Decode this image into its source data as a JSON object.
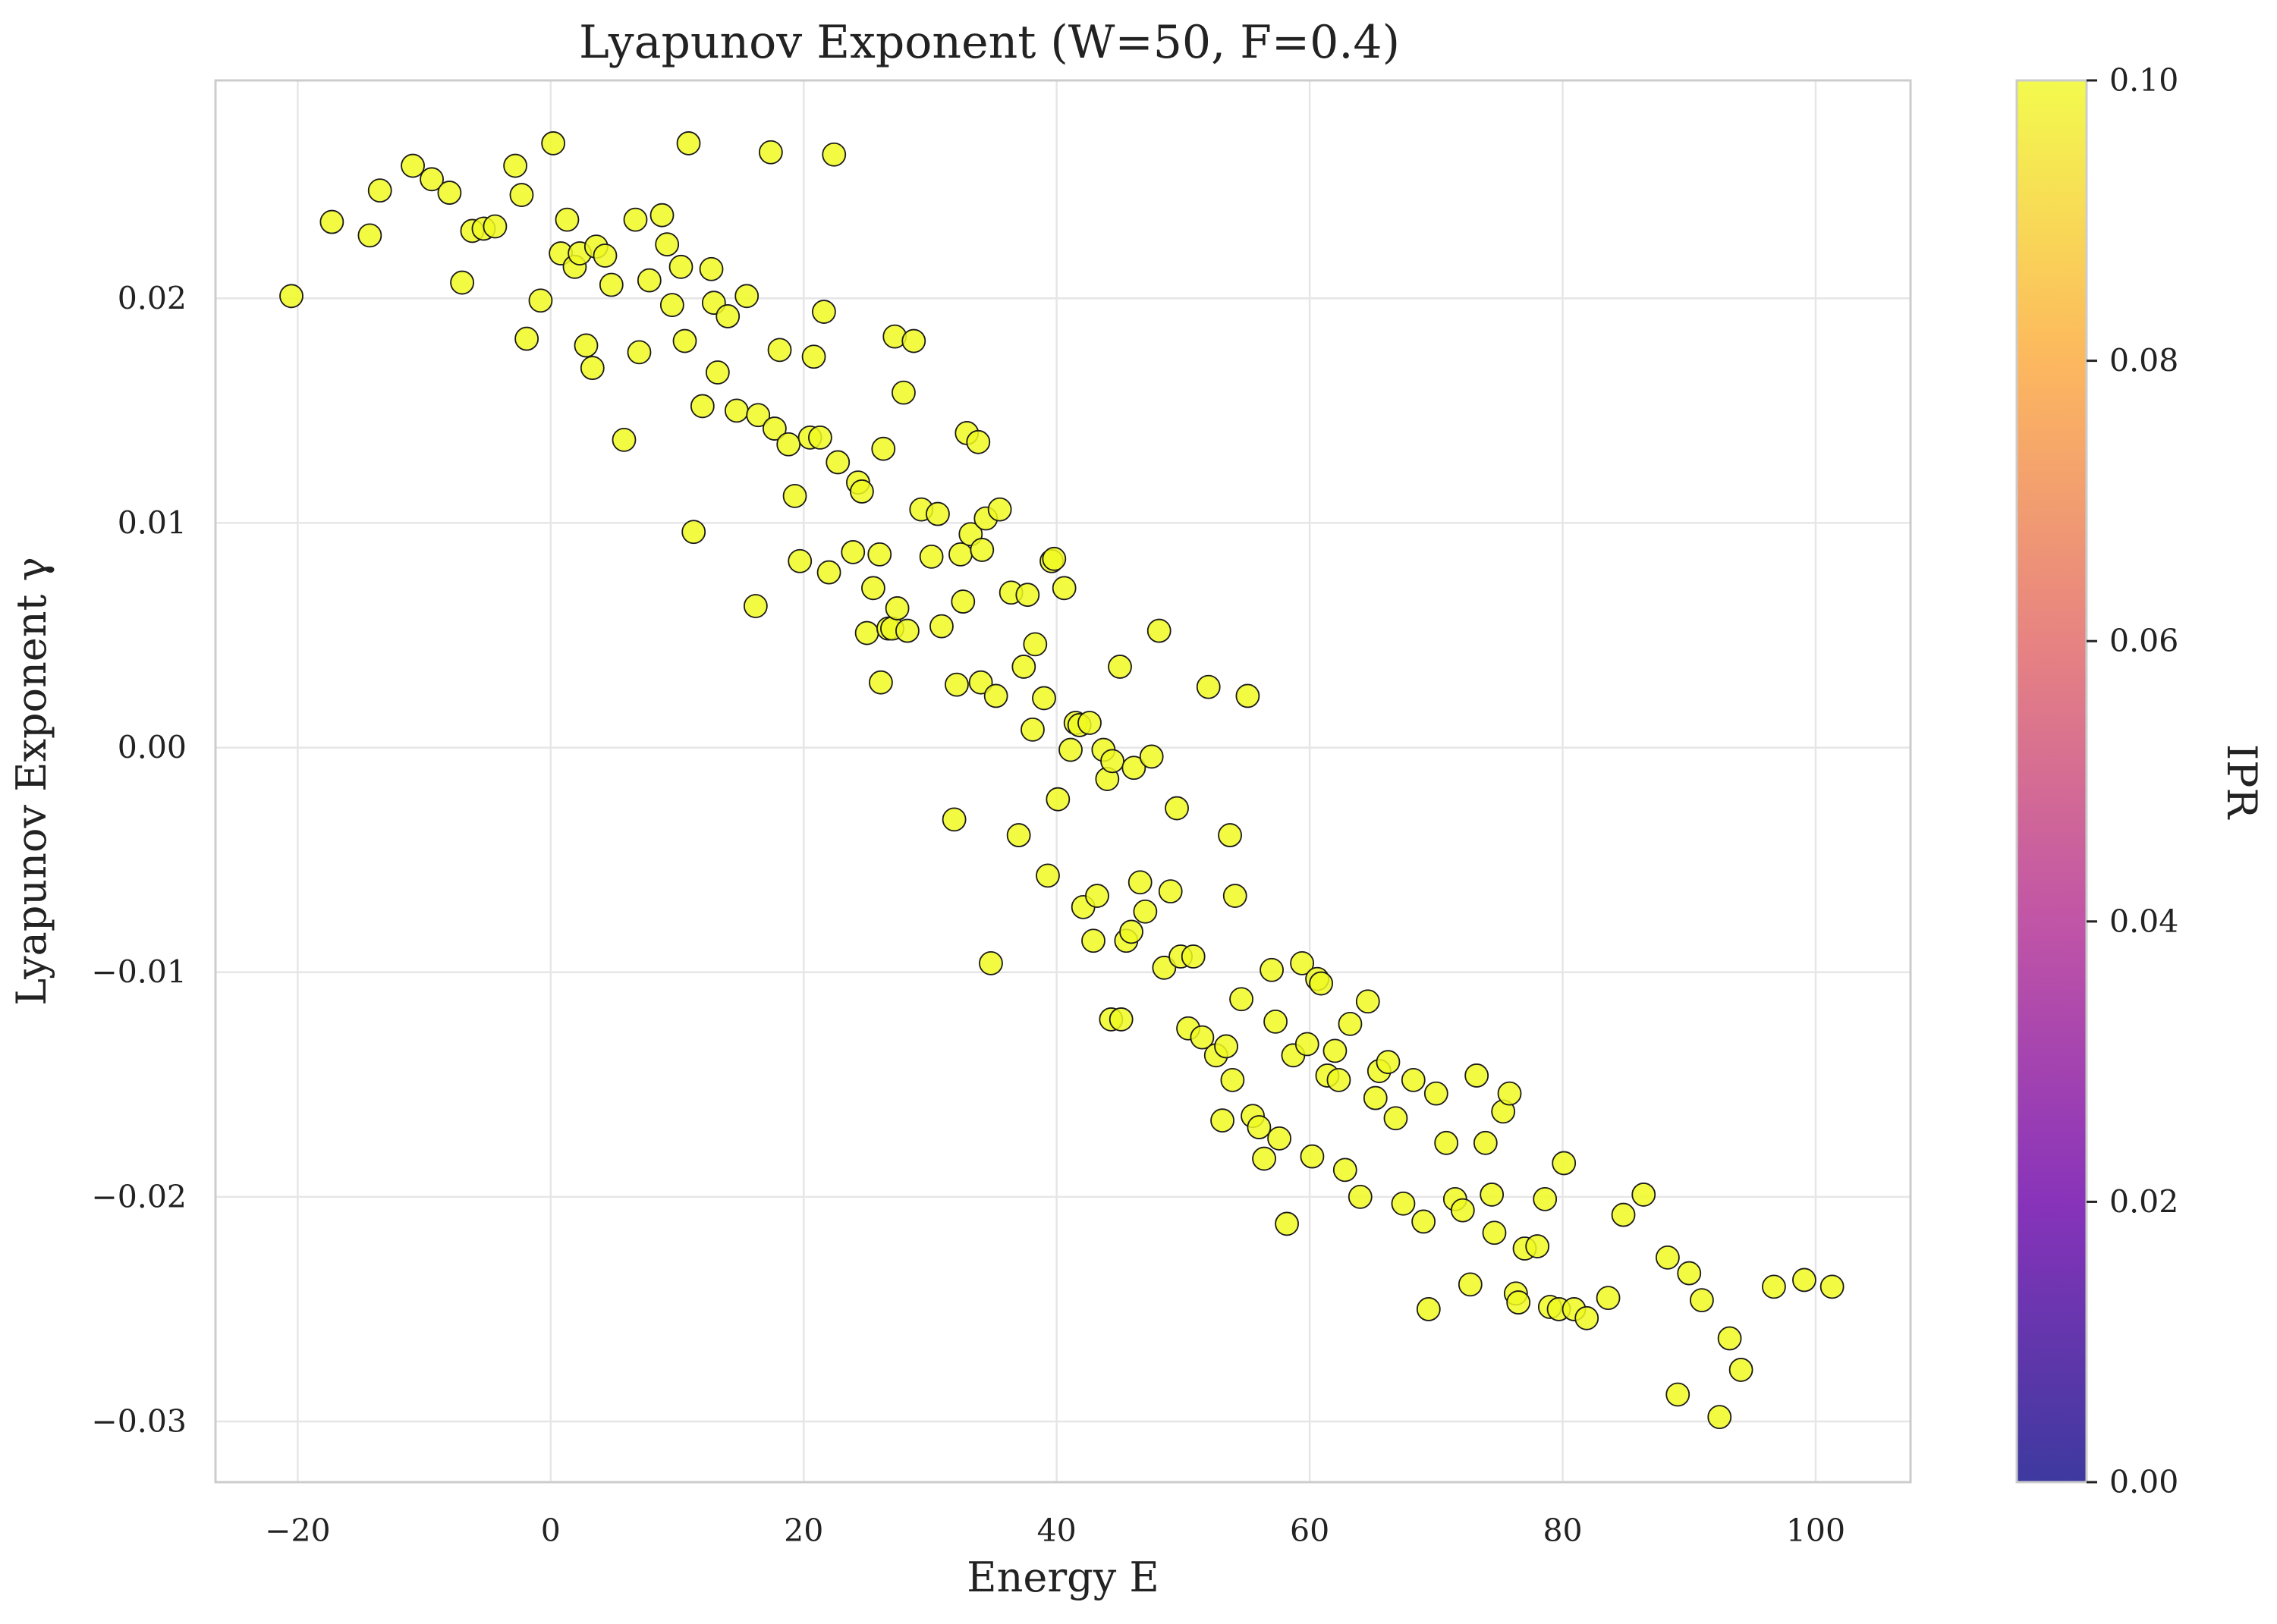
{
  "chart_data": {
    "type": "scatter",
    "title": "Lyapunov Exponent (W=50, F=0.4)",
    "xlabel": "Energy E",
    "ylabel": "Lyapunov Exponent γ",
    "xlim": [
      -26.5,
      107.5
    ],
    "ylim": [
      -0.0327,
      0.0297
    ],
    "xticks": [
      -20,
      0,
      20,
      40,
      60,
      80,
      100
    ],
    "xtick_labels": [
      "−20",
      "0",
      "20",
      "40",
      "60",
      "80",
      "100"
    ],
    "yticks": [
      -0.03,
      -0.02,
      -0.01,
      0.0,
      0.01,
      0.02
    ],
    "ytick_labels": [
      "−0.03",
      "−0.02",
      "−0.01",
      "0.00",
      "0.01",
      "0.02"
    ],
    "grid": true,
    "marker_color": "#f0f921",
    "marker_edge_color": "#1a1a1a",
    "colorbar": {
      "label": "IPR",
      "range": [
        0.0,
        0.1
      ],
      "ticks": [
        0.0,
        0.02,
        0.04,
        0.06,
        0.08,
        0.1
      ],
      "tick_labels": [
        "0.00",
        "0.02",
        "0.04",
        "0.06",
        "0.08",
        "0.10"
      ],
      "colormap": [
        "#0d0887",
        "#6a00a8",
        "#b12a90",
        "#e16462",
        "#fca636",
        "#f0f921"
      ]
    },
    "series": [
      {
        "ipr": 0.1,
        "points": [
          [
            -20.5,
            0.0201
          ],
          [
            -17.3,
            0.0234
          ],
          [
            -14.3,
            0.0228
          ],
          [
            -13.5,
            0.0248
          ],
          [
            -10.9,
            0.0259
          ],
          [
            -9.4,
            0.0253
          ],
          [
            -8.0,
            0.0247
          ],
          [
            -7.0,
            0.0207
          ],
          [
            -6.2,
            0.023
          ],
          [
            -5.3,
            0.0231
          ],
          [
            -4.4,
            0.0232
          ],
          [
            -2.8,
            0.0259
          ],
          [
            -2.3,
            0.0246
          ],
          [
            -1.9,
            0.0182
          ],
          [
            -0.8,
            0.0199
          ],
          [
            0.2,
            0.0269
          ],
          [
            0.8,
            0.022
          ],
          [
            1.3,
            0.0235
          ],
          [
            1.9,
            0.0214
          ],
          [
            2.3,
            0.022
          ],
          [
            2.8,
            0.0179
          ],
          [
            3.3,
            0.0169
          ],
          [
            3.6,
            0.0223
          ],
          [
            4.3,
            0.0219
          ],
          [
            4.8,
            0.0206
          ],
          [
            5.8,
            0.0137
          ],
          [
            6.7,
            0.0235
          ],
          [
            7.0,
            0.0176
          ],
          [
            7.8,
            0.0208
          ],
          [
            8.8,
            0.0237
          ],
          [
            9.2,
            0.0224
          ],
          [
            9.6,
            0.0197
          ],
          [
            10.3,
            0.0214
          ],
          [
            10.6,
            0.0181
          ],
          [
            10.9,
            0.0269
          ],
          [
            11.3,
            0.0096
          ],
          [
            12.0,
            0.0152
          ],
          [
            12.7,
            0.0213
          ],
          [
            12.9,
            0.0198
          ],
          [
            13.2,
            0.0167
          ],
          [
            14.0,
            0.0192
          ],
          [
            14.7,
            0.015
          ],
          [
            15.5,
            0.0201
          ],
          [
            16.2,
            0.0063
          ],
          [
            16.4,
            0.0148
          ],
          [
            17.4,
            0.0265
          ],
          [
            17.7,
            0.0142
          ],
          [
            18.1,
            0.0177
          ],
          [
            18.8,
            0.0135
          ],
          [
            19.3,
            0.0112
          ],
          [
            19.7,
            0.0083
          ],
          [
            20.5,
            0.0138
          ],
          [
            20.8,
            0.0174
          ],
          [
            21.3,
            0.0138
          ],
          [
            21.6,
            0.0194
          ],
          [
            22.0,
            0.0078
          ],
          [
            22.4,
            0.0264
          ],
          [
            22.7,
            0.0127
          ],
          [
            23.9,
            0.0087
          ],
          [
            24.3,
            0.0118
          ],
          [
            24.6,
            0.0114
          ],
          [
            25.0,
            0.0051
          ],
          [
            25.5,
            0.0071
          ],
          [
            26.0,
            0.0086
          ],
          [
            26.1,
            0.0029
          ],
          [
            26.3,
            0.0133
          ],
          [
            26.7,
            0.0053
          ],
          [
            27.0,
            0.0053
          ],
          [
            27.2,
            0.0183
          ],
          [
            27.4,
            0.0062
          ],
          [
            27.9,
            0.0158
          ],
          [
            28.2,
            0.0052
          ],
          [
            28.7,
            0.0181
          ],
          [
            29.3,
            0.0106
          ],
          [
            30.1,
            0.0085
          ],
          [
            30.6,
            0.0104
          ],
          [
            30.9,
            0.0054
          ],
          [
            31.9,
            -0.0032
          ],
          [
            32.1,
            0.0028
          ],
          [
            32.4,
            0.0086
          ],
          [
            32.6,
            0.0065
          ],
          [
            32.9,
            0.014
          ],
          [
            33.2,
            0.0095
          ],
          [
            33.8,
            0.0136
          ],
          [
            34.0,
            0.0029
          ],
          [
            34.1,
            0.0088
          ],
          [
            34.4,
            0.0102
          ],
          [
            34.8,
            -0.0096
          ],
          [
            35.2,
            0.0023
          ],
          [
            35.5,
            0.0106
          ],
          [
            36.4,
            0.0069
          ],
          [
            37.0,
            -0.0039
          ],
          [
            37.4,
            0.0036
          ],
          [
            37.7,
            0.0068
          ],
          [
            38.1,
            0.0008
          ],
          [
            38.3,
            0.0046
          ],
          [
            39.0,
            0.0022
          ],
          [
            39.3,
            -0.0057
          ],
          [
            39.6,
            0.0083
          ],
          [
            39.8,
            0.0084
          ],
          [
            40.1,
            -0.0023
          ],
          [
            40.6,
            0.0071
          ],
          [
            41.1,
            -0.0001
          ],
          [
            41.5,
            0.0011
          ],
          [
            41.8,
            0.001
          ],
          [
            42.1,
            -0.0071
          ],
          [
            42.6,
            0.0011
          ],
          [
            42.9,
            -0.0086
          ],
          [
            43.2,
            -0.0066
          ],
          [
            43.7,
            -0.0001
          ],
          [
            44.0,
            -0.0014
          ],
          [
            44.3,
            -0.0121
          ],
          [
            44.4,
            -0.0006
          ],
          [
            45.0,
            0.0036
          ],
          [
            45.1,
            -0.0121
          ],
          [
            45.5,
            -0.0086
          ],
          [
            45.9,
            -0.0082
          ],
          [
            46.1,
            -0.0009
          ],
          [
            46.6,
            -0.006
          ],
          [
            47.0,
            -0.0073
          ],
          [
            47.5,
            -0.0004
          ],
          [
            48.1,
            0.0052
          ],
          [
            48.5,
            -0.0098
          ],
          [
            49.0,
            -0.0064
          ],
          [
            49.5,
            -0.0027
          ],
          [
            49.8,
            -0.0093
          ],
          [
            50.4,
            -0.0125
          ],
          [
            50.8,
            -0.0093
          ],
          [
            51.5,
            -0.0129
          ],
          [
            52.0,
            0.0027
          ],
          [
            52.6,
            -0.0137
          ],
          [
            53.1,
            -0.0166
          ],
          [
            53.4,
            -0.0133
          ],
          [
            53.7,
            -0.0039
          ],
          [
            53.9,
            -0.0148
          ],
          [
            54.1,
            -0.0066
          ],
          [
            54.6,
            -0.0112
          ],
          [
            55.1,
            0.0023
          ],
          [
            55.5,
            -0.0164
          ],
          [
            56.0,
            -0.0169
          ],
          [
            56.4,
            -0.0183
          ],
          [
            57.0,
            -0.0099
          ],
          [
            57.3,
            -0.0122
          ],
          [
            57.6,
            -0.0174
          ],
          [
            58.2,
            -0.0212
          ],
          [
            58.7,
            -0.0137
          ],
          [
            59.4,
            -0.0096
          ],
          [
            59.8,
            -0.0132
          ],
          [
            60.2,
            -0.0182
          ],
          [
            60.6,
            -0.0103
          ],
          [
            60.9,
            -0.0105
          ],
          [
            61.4,
            -0.0146
          ],
          [
            62.0,
            -0.0135
          ],
          [
            62.3,
            -0.0148
          ],
          [
            62.8,
            -0.0188
          ],
          [
            63.2,
            -0.0123
          ],
          [
            64.0,
            -0.02
          ],
          [
            64.6,
            -0.0113
          ],
          [
            65.2,
            -0.0156
          ],
          [
            65.5,
            -0.0144
          ],
          [
            66.2,
            -0.014
          ],
          [
            66.8,
            -0.0165
          ],
          [
            67.4,
            -0.0203
          ],
          [
            68.2,
            -0.0148
          ],
          [
            69.0,
            -0.0211
          ],
          [
            69.4,
            -0.025
          ],
          [
            70.0,
            -0.0154
          ],
          [
            70.8,
            -0.0176
          ],
          [
            71.5,
            -0.0201
          ],
          [
            72.1,
            -0.0206
          ],
          [
            72.7,
            -0.0239
          ],
          [
            73.2,
            -0.0146
          ],
          [
            73.9,
            -0.0176
          ],
          [
            74.4,
            -0.0199
          ],
          [
            74.6,
            -0.0216
          ],
          [
            75.3,
            -0.0162
          ],
          [
            75.8,
            -0.0154
          ],
          [
            76.3,
            -0.0243
          ],
          [
            76.5,
            -0.0247
          ],
          [
            77.0,
            -0.0223
          ],
          [
            78.0,
            -0.0222
          ],
          [
            78.6,
            -0.0201
          ],
          [
            79.0,
            -0.0249
          ],
          [
            79.7,
            -0.025
          ],
          [
            80.1,
            -0.0185
          ],
          [
            80.9,
            -0.025
          ],
          [
            81.9,
            -0.0254
          ],
          [
            83.6,
            -0.0245
          ],
          [
            84.8,
            -0.0208
          ],
          [
            86.4,
            -0.0199
          ],
          [
            88.3,
            -0.0227
          ],
          [
            89.1,
            -0.0288
          ],
          [
            90.0,
            -0.0234
          ],
          [
            91.0,
            -0.0246
          ],
          [
            92.4,
            -0.0298
          ],
          [
            93.2,
            -0.0263
          ],
          [
            94.1,
            -0.0277
          ],
          [
            96.7,
            -0.024
          ],
          [
            99.1,
            -0.0237
          ],
          [
            101.3,
            -0.024
          ]
        ]
      }
    ]
  }
}
